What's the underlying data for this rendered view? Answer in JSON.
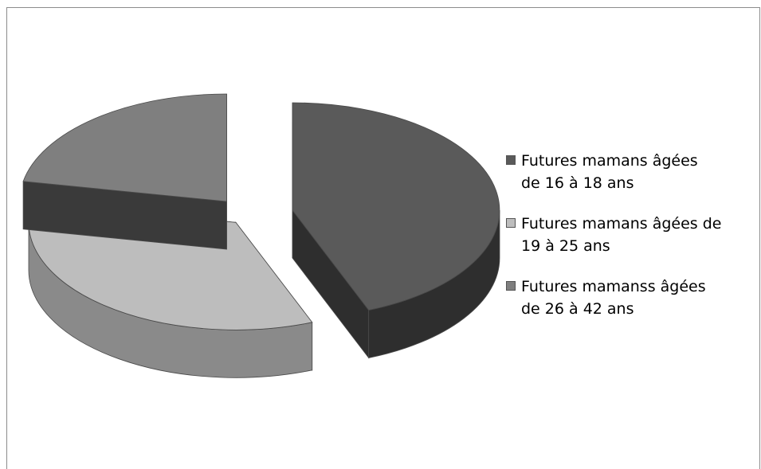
{
  "chart_data": {
    "type": "pie",
    "style": "3d-exploded",
    "title": "",
    "categories": [
      "Futures mamans  âgées\nde 16 à 18 ans",
      "Futures mamans âgées de\n19 à 25 ans",
      "Futures mamanss âgées\nde 26 à 42 ans"
    ],
    "values": [
      44,
      34,
      22
    ],
    "colors": [
      "#5a5a5a",
      "#bdbdbd",
      "#7f7f7f"
    ],
    "side_colors": [
      "#2e2e2e",
      "#8a8a8a",
      "#3a3a3a"
    ],
    "legend_position": "right"
  }
}
